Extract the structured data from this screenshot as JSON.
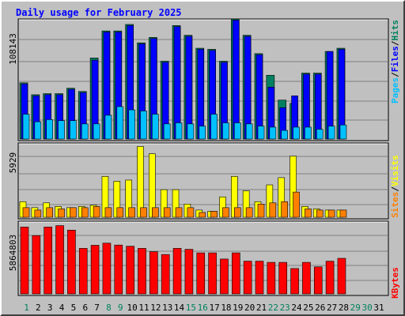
{
  "title": "Daily usage for February 2025",
  "colors": {
    "background": "#c0c0c0",
    "title": "#0000ff",
    "hits": "#00a0ff",
    "hits_legend": "#00805c",
    "files": "#0000ff",
    "pages": "#00c0ff",
    "visits": "#ffff00",
    "sites": "#ff8000",
    "kbytes": "#ff0000",
    "weekday": "#000000",
    "weekend": "#00805c"
  },
  "legends": {
    "top": [
      "Pages",
      "/",
      "Files",
      "/",
      "Hits"
    ],
    "middle": [
      "Sites",
      "/",
      "Visits"
    ],
    "bottom": [
      "KBytes"
    ]
  },
  "chart_data": [
    {
      "type": "bar",
      "title": "Daily usage for February 2025",
      "ylabel": "108143",
      "ylim": [
        0,
        108143
      ],
      "x": [
        1,
        2,
        3,
        4,
        5,
        6,
        7,
        8,
        9,
        10,
        11,
        12,
        13,
        14,
        15,
        16,
        17,
        18,
        19,
        20,
        21,
        22,
        23,
        24,
        25,
        26,
        27,
        28
      ],
      "series": [
        {
          "name": "Hits",
          "values": [
            52000,
            41000,
            42000,
            42000,
            47000,
            44000,
            75000,
            100000,
            100000,
            106000,
            89000,
            94000,
            72000,
            105000,
            96000,
            84000,
            83000,
            72000,
            111000,
            96000,
            79000,
            59000,
            36000,
            33000,
            61000,
            61000,
            81000,
            84000
          ]
        },
        {
          "name": "Files",
          "values": [
            51000,
            40000,
            41000,
            41000,
            46000,
            43000,
            73000,
            99000,
            99000,
            105000,
            88000,
            93000,
            71000,
            104000,
            95000,
            83000,
            82000,
            71000,
            110000,
            95000,
            78000,
            48000,
            29000,
            40000,
            60000,
            60000,
            81000,
            83000
          ]
        },
        {
          "name": "Pages",
          "values": [
            23000,
            16000,
            18000,
            17000,
            17000,
            14000,
            14000,
            22000,
            30000,
            27000,
            26000,
            23000,
            14000,
            15000,
            14000,
            12000,
            23000,
            15000,
            15000,
            14000,
            12000,
            11000,
            8000,
            11000,
            11000,
            9000,
            12000,
            13000
          ]
        }
      ]
    },
    {
      "type": "bar",
      "ylabel": "5929",
      "ylim": [
        0,
        5929
      ],
      "x": [
        1,
        2,
        3,
        4,
        5,
        6,
        7,
        8,
        9,
        10,
        11,
        12,
        13,
        14,
        15,
        16,
        17,
        18,
        19,
        20,
        21,
        22,
        23,
        24,
        25,
        26,
        27,
        28
      ],
      "series": [
        {
          "name": "Visits",
          "values": [
            1300,
            800,
            1200,
            900,
            800,
            900,
            1000,
            3400,
            3000,
            3100,
            5900,
            5300,
            2300,
            2300,
            1100,
            600,
            500,
            1700,
            3400,
            2200,
            1300,
            2700,
            3300,
            5100,
            900,
            700,
            600,
            600
          ]
        },
        {
          "name": "Sites",
          "values": [
            800,
            600,
            800,
            700,
            800,
            800,
            900,
            800,
            800,
            800,
            800,
            800,
            800,
            800,
            800,
            400,
            500,
            800,
            800,
            800,
            1100,
            1200,
            1300,
            2100,
            700,
            600,
            600,
            600
          ]
        }
      ]
    },
    {
      "type": "bar",
      "ylabel": "5864803",
      "ylim": [
        0,
        5864803
      ],
      "x": [
        1,
        2,
        3,
        4,
        5,
        6,
        7,
        8,
        9,
        10,
        11,
        12,
        13,
        14,
        15,
        16,
        17,
        18,
        19,
        20,
        21,
        22,
        23,
        24,
        25,
        26,
        27,
        28
      ],
      "series": [
        {
          "name": "KBytes",
          "values": [
            5640000,
            4920000,
            5640000,
            5760000,
            5380000,
            3840000,
            4100000,
            4280000,
            4120000,
            4020000,
            3840000,
            3560000,
            3320000,
            3840000,
            3760000,
            3460000,
            3460000,
            2940000,
            3460000,
            2760000,
            2760000,
            2660000,
            2660000,
            2140000,
            2660000,
            2280000,
            2760000,
            3000000
          ]
        }
      ]
    }
  ],
  "x_labels": [
    "1",
    "2",
    "3",
    "4",
    "5",
    "6",
    "7",
    "8",
    "9",
    "10",
    "11",
    "12",
    "13",
    "14",
    "15",
    "16",
    "17",
    "18",
    "19",
    "20",
    "21",
    "22",
    "23",
    "24",
    "25",
    "26",
    "27",
    "28",
    "29",
    "30",
    "31"
  ],
  "weekend_days": [
    1,
    8,
    9,
    15,
    16,
    22,
    23,
    29,
    30
  ]
}
